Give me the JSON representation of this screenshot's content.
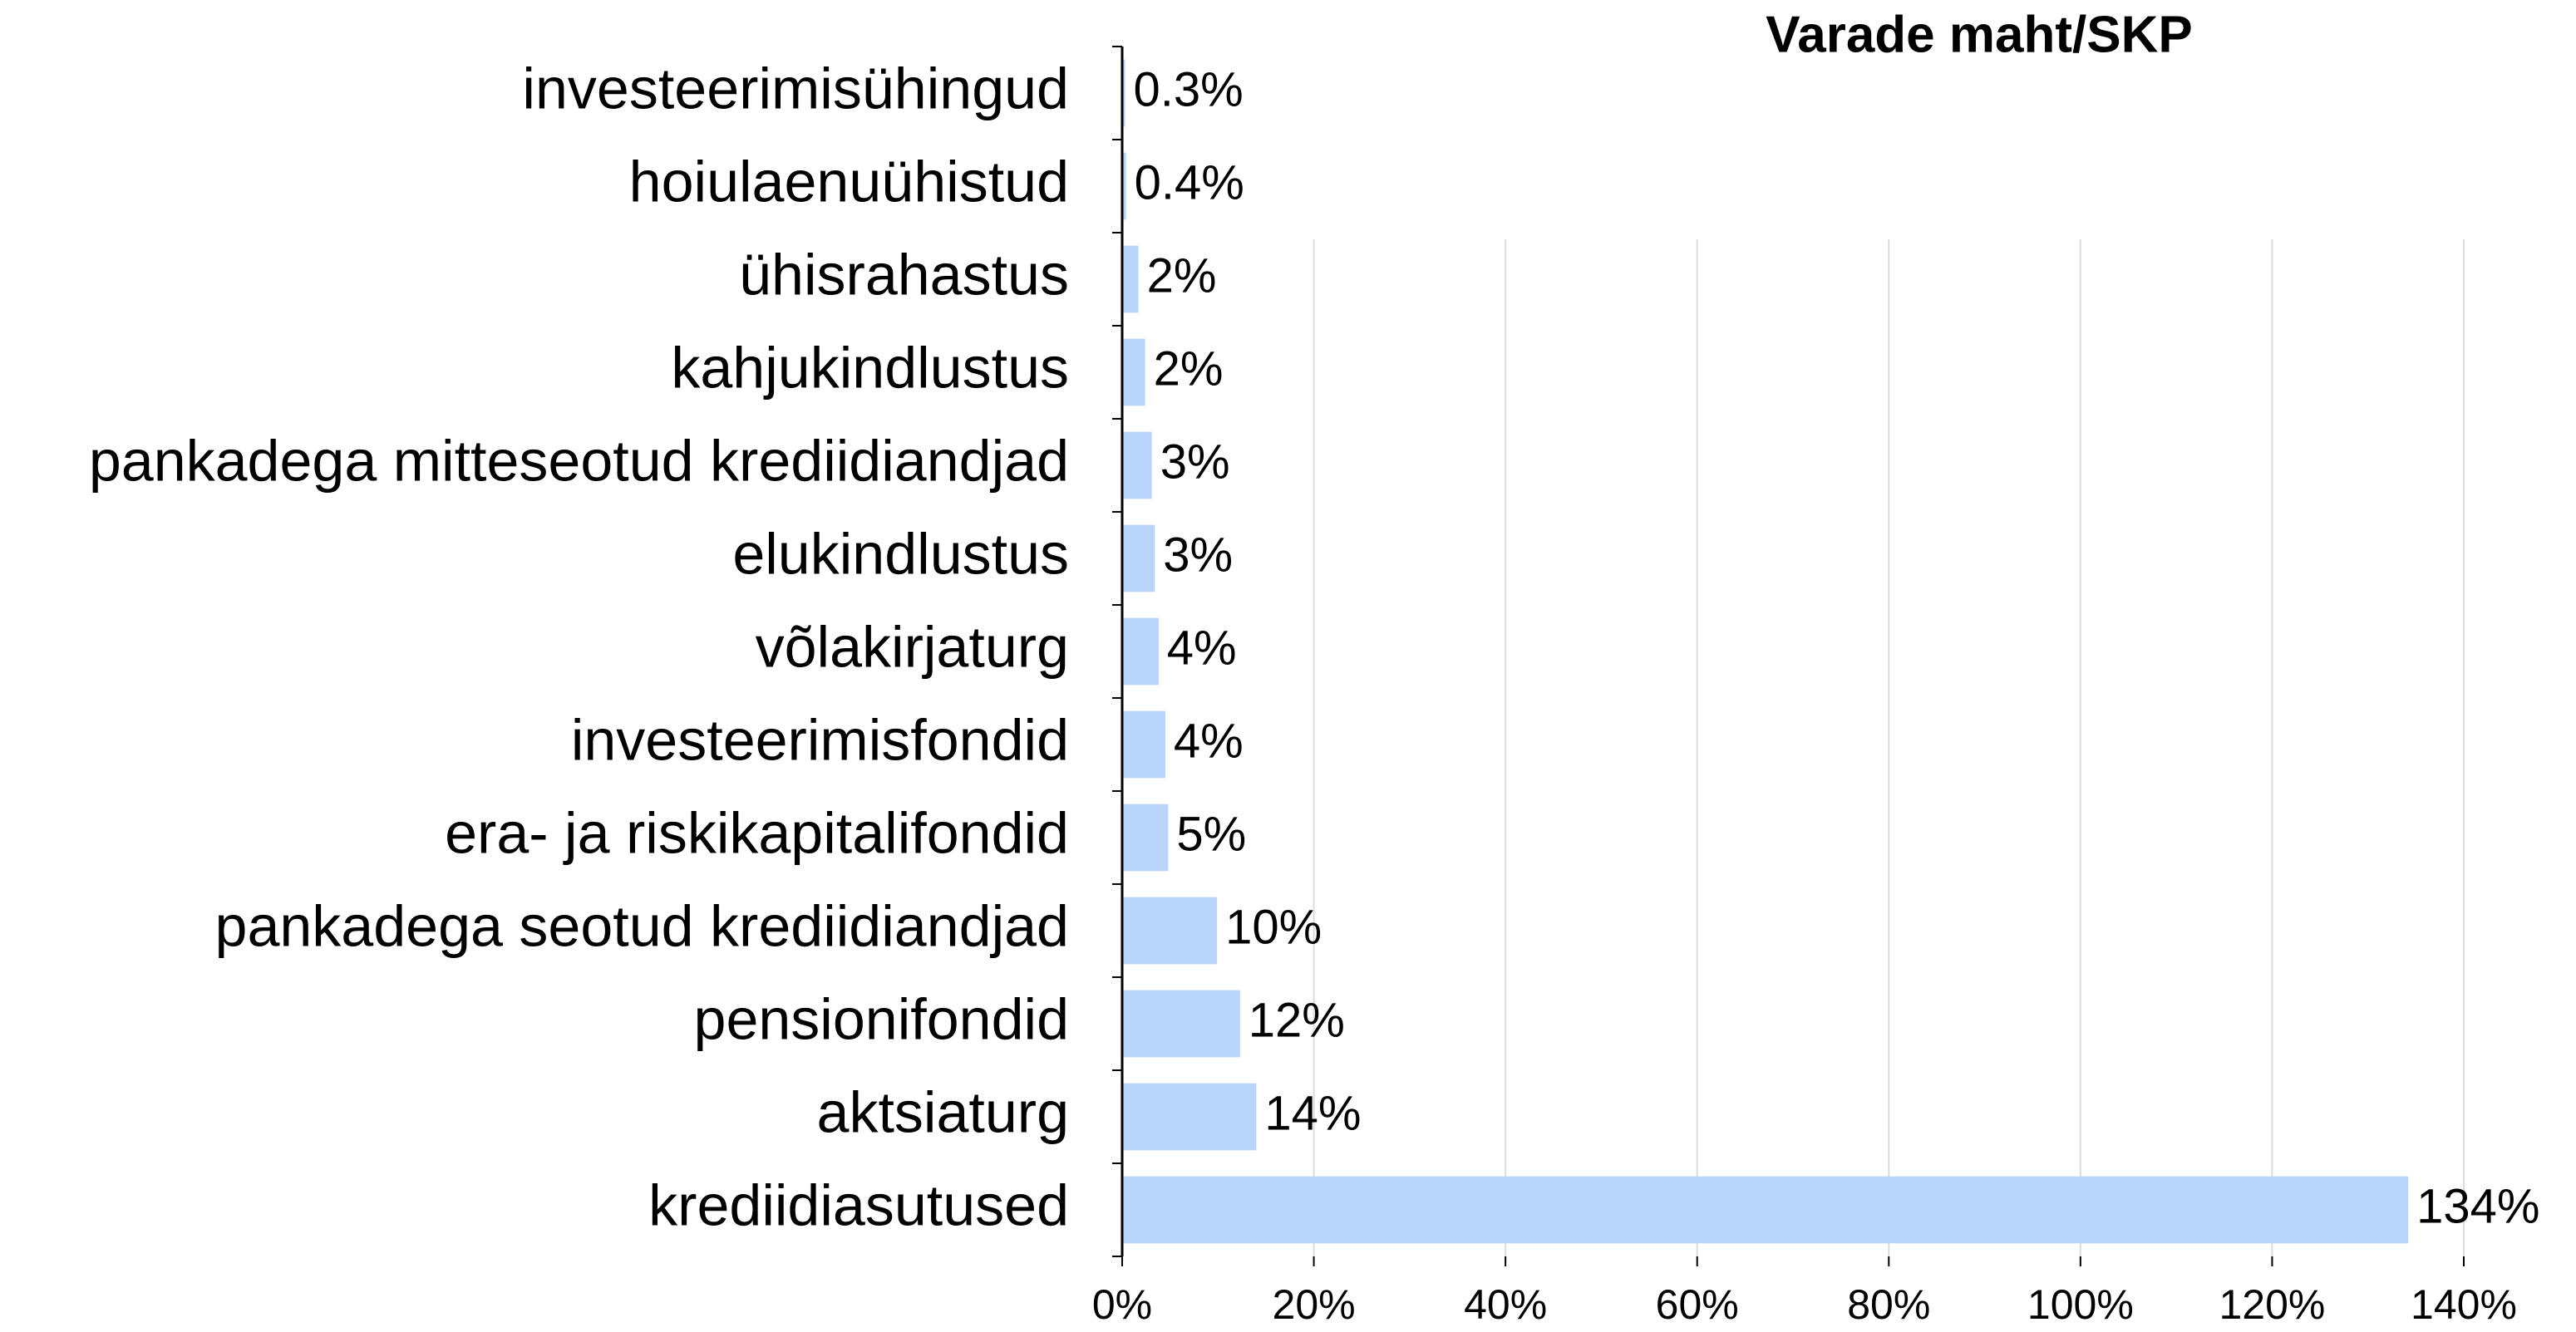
{
  "chart_data": {
    "type": "bar",
    "orientation": "horizontal",
    "title": "Varade maht/SKP",
    "categories": [
      "investeerimisühingud",
      "hoiulaenuühistud",
      "ühisrahastus",
      "kahjukindlustus",
      "pankadega mitteseotud krediidiandjad",
      "elukindlustus",
      "võlakirjaturg",
      "investeerimisfondid",
      "era- ja riskikapitalifondid",
      "pankadega seotud krediidiandjad",
      "pensionifondid",
      "aktsiaturg",
      "krediidiasutused"
    ],
    "values": [
      0.3,
      0.4,
      1.7,
      2.4,
      3.1,
      3.4,
      3.8,
      4.5,
      4.8,
      9.9,
      12.3,
      14.0,
      134.2
    ],
    "value_labels": [
      "0.3%",
      "0.4%",
      "2%",
      "2%",
      "3%",
      "3%",
      "4%",
      "4%",
      "5%",
      "10%",
      "12%",
      "14%",
      "134%"
    ],
    "color": "#b9d4fb",
    "xlim": [
      0,
      140
    ],
    "xticks": [
      {
        "value": 0,
        "label": "0%"
      },
      {
        "value": 20,
        "label": "20%"
      },
      {
        "value": 40,
        "label": "40%"
      },
      {
        "value": 60,
        "label": "60%"
      },
      {
        "value": 80,
        "label": "80%"
      },
      {
        "value": 100,
        "label": "100%"
      },
      {
        "value": 120,
        "label": "120%"
      },
      {
        "value": 140,
        "label": "140%"
      }
    ],
    "grid": true
  }
}
